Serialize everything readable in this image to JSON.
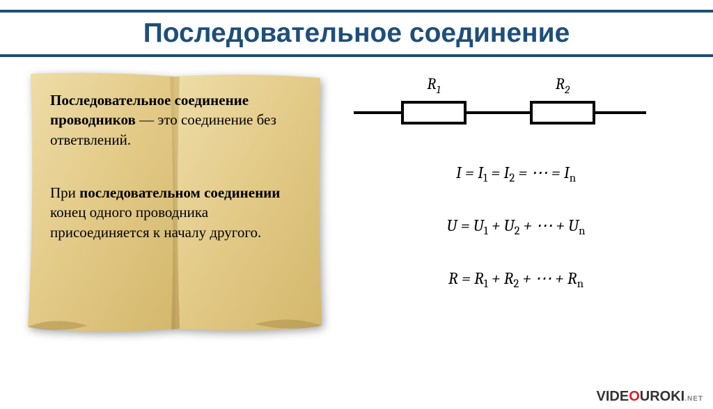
{
  "title": {
    "text": "Последовательное соединение",
    "color": "#1f4e79",
    "rule_color": "#1f4e79",
    "fontsize": 39
  },
  "paper": {
    "fill_light": "#e8d49a",
    "fill_mid": "#d9be7d",
    "fill_dark": "#c2a45f",
    "fold_shadow": "#a88a46",
    "text_fontsize": 21,
    "para1_bold": "Последовательное соединение проводников",
    "para1_rest": " — это соединение без ответвлений.",
    "para2_pre": "При ",
    "para2_bold": "последовательном соединении",
    "para2_rest": " конец одного проводника присоединяется к началу другого."
  },
  "circuit": {
    "stroke": "#000000",
    "stroke_width": 4,
    "label1": "R",
    "sub1": "1",
    "label2": "R",
    "sub2": "2",
    "label_fontsize": 23
  },
  "equations": {
    "fontsize": 24,
    "color": "#000000",
    "eq1": "I = I<sub>1</sub> = I<sub>2</sub> = ⋯ = I<sub>n</sub>",
    "eq2": "U = U<sub>1</sub> + U<sub>2</sub> + ⋯ + U<sub>n</sub>",
    "eq3": "R = R<sub>1</sub> + R<sub>2</sub> + ⋯ + R<sub>n</sub>"
  },
  "watermark": {
    "vide": "VIDE",
    "o": "O",
    "uroki": "UROKI",
    "net": ".NET",
    "color_dark": "#333333",
    "color_o": "#e31b23",
    "color_net": "#808080"
  }
}
